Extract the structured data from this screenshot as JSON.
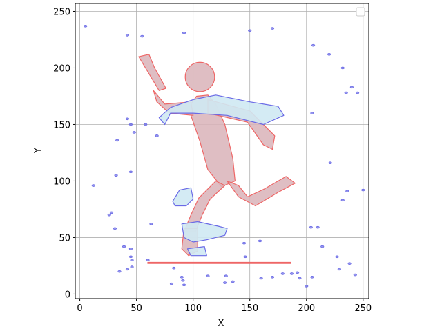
{
  "chart_data": {
    "type": "scatter",
    "title": "",
    "xlabel": "X",
    "ylabel": "Y",
    "xlim": [
      -4,
      255
    ],
    "ylim": [
      -4,
      257
    ],
    "xticks": [
      0,
      50,
      100,
      150,
      200,
      250
    ],
    "yticks": [
      0,
      50,
      100,
      150,
      200,
      250
    ],
    "x_tick_labels": [
      "0",
      "50",
      "100",
      "150",
      "200",
      "250"
    ],
    "y_tick_labels": [
      "0",
      "50",
      "100",
      "150",
      "200",
      "250"
    ],
    "grid": true,
    "legend": {
      "location": "top-right",
      "entries": []
    },
    "colors": {
      "outline_blue": "#6a6ae6",
      "fill_light_blue": "#cfe9f3",
      "mask_red": "#ee6666",
      "mask_fill": "#d9b3b8",
      "grid": "#b0b0b0"
    },
    "series": [
      {
        "kind": "polygon",
        "role": "pose-mask",
        "color": "#ee6666",
        "fill": "#d9b3b8",
        "parts": [
          {
            "part": "head",
            "shape": "circle",
            "cx": 106,
            "cy": 192,
            "r": 13
          },
          {
            "part": "torso",
            "points": [
              [
                103,
                175
              ],
              [
                113,
                176
              ],
              [
                120,
                168
              ],
              [
                128,
                150
              ],
              [
                135,
                120
              ],
              [
                137,
                100
              ],
              [
                125,
                95
              ],
              [
                113,
                110
              ],
              [
                106,
                135
              ],
              [
                98,
                158
              ],
              [
                98,
                168
              ]
            ]
          },
          {
            "part": "upper-arm-left",
            "points": [
              [
                98,
                170
              ],
              [
                75,
                168
              ],
              [
                65,
                180
              ],
              [
                68,
                170
              ],
              [
                79,
                160
              ],
              [
                100,
                158
              ]
            ]
          },
          {
            "part": "forearm-left",
            "points": [
              [
                70,
                180
              ],
              [
                58,
                200
              ],
              [
                52,
                210
              ],
              [
                61,
                212
              ],
              [
                66,
                200
              ],
              [
                76,
                182
              ]
            ]
          },
          {
            "part": "arm-right",
            "points": [
              [
                113,
                172
              ],
              [
                150,
                162
              ],
              [
                172,
                140
              ],
              [
                170,
                128
              ],
              [
                162,
                132
              ],
              [
                148,
                152
              ],
              [
                113,
                160
              ]
            ]
          },
          {
            "part": "thigh-left",
            "points": [
              [
                120,
                100
              ],
              [
                105,
                85
              ],
              [
                98,
                70
              ],
              [
                92,
                55
              ],
              [
                102,
                55
              ],
              [
                108,
                70
              ],
              [
                115,
                84
              ],
              [
                128,
                96
              ]
            ]
          },
          {
            "part": "shin-left",
            "points": [
              [
                92,
                58
              ],
              [
                90,
                40
              ],
              [
                96,
                34
              ],
              [
                104,
                38
              ],
              [
                104,
                58
              ]
            ]
          },
          {
            "part": "leg-right",
            "points": [
              [
                130,
                100
              ],
              [
                140,
                86
              ],
              [
                155,
                78
              ],
              [
                175,
                90
              ],
              [
                190,
                98
              ],
              [
                182,
                104
              ],
              [
                163,
                93
              ],
              [
                148,
                86
              ],
              [
                140,
                96
              ]
            ]
          },
          {
            "part": "skateboard",
            "points": [
              [
                60,
                27
              ],
              [
                186,
                27
              ],
              [
                186,
                28
              ],
              [
                60,
                28
              ]
            ]
          }
        ]
      },
      {
        "kind": "polygon",
        "role": "segmentation-regions",
        "color": "#6a6ae6",
        "fill": "#cfe9f3",
        "parts": [
          {
            "part": "shirt-region",
            "points": [
              [
                80,
                165
              ],
              [
                100,
                172
              ],
              [
                120,
                176
              ],
              [
                150,
                170
              ],
              [
                175,
                166
              ],
              [
                180,
                158
              ],
              [
                162,
                150
              ],
              [
                130,
                158
              ],
              [
                100,
                160
              ],
              [
                80,
                160
              ],
              [
                75,
                150
              ],
              [
                70,
                156
              ]
            ]
          },
          {
            "part": "board-region",
            "points": [
              [
                90,
                62
              ],
              [
                104,
                64
              ],
              [
                122,
                60
              ],
              [
                130,
                58
              ],
              [
                128,
                52
              ],
              [
                112,
                48
              ],
              [
                100,
                46
              ],
              [
                92,
                50
              ]
            ]
          },
          {
            "part": "shadow-region",
            "points": [
              [
                82,
                82
              ],
              [
                88,
                92
              ],
              [
                98,
                94
              ],
              [
                100,
                84
              ],
              [
                94,
                78
              ],
              [
                84,
                78
              ]
            ]
          },
          {
            "part": "foot-region",
            "points": [
              [
                95,
                40
              ],
              [
                110,
                42
              ],
              [
                112,
                34
              ],
              [
                98,
                34
              ]
            ]
          }
        ]
      },
      {
        "kind": "scatter",
        "role": "speckles",
        "color": "#6a6ae6",
        "points": [
          [
            5,
            237
          ],
          [
            42,
            229
          ],
          [
            55,
            228
          ],
          [
            92,
            231
          ],
          [
            150,
            233
          ],
          [
            170,
            235
          ],
          [
            220,
            212
          ],
          [
            206,
            220
          ],
          [
            235,
            178
          ],
          [
            240,
            183
          ],
          [
            245,
            178
          ],
          [
            232,
            200
          ],
          [
            42,
            155
          ],
          [
            45,
            150
          ],
          [
            48,
            143
          ],
          [
            33,
            136
          ],
          [
            32,
            105
          ],
          [
            45,
            108
          ],
          [
            58,
            150
          ],
          [
            68,
            140
          ],
          [
            205,
            160
          ],
          [
            221,
            116
          ],
          [
            236,
            91
          ],
          [
            232,
            83
          ],
          [
            250,
            92
          ],
          [
            214,
            42
          ],
          [
            227,
            33
          ],
          [
            238,
            27
          ],
          [
            243,
            17
          ],
          [
            229,
            22
          ],
          [
            204,
            59
          ],
          [
            210,
            59
          ],
          [
            45,
            33
          ],
          [
            46,
            30
          ],
          [
            46,
            24
          ],
          [
            35,
            20
          ],
          [
            42,
            22
          ],
          [
            45,
            40
          ],
          [
            39,
            42
          ],
          [
            83,
            23
          ],
          [
            92,
            8
          ],
          [
            135,
            11
          ],
          [
            113,
            16
          ],
          [
            129,
            16
          ],
          [
            170,
            15
          ],
          [
            179,
            18
          ],
          [
            187,
            18
          ],
          [
            192,
            19
          ],
          [
            194,
            14
          ],
          [
            205,
            15
          ],
          [
            90,
            15
          ],
          [
            91,
            12
          ],
          [
            81,
            9
          ],
          [
            128,
            10
          ],
          [
            160,
            14
          ],
          [
            63,
            62
          ],
          [
            60,
            30
          ],
          [
            145,
            45
          ],
          [
            159,
            47
          ],
          [
            146,
            33
          ],
          [
            200,
            7
          ],
          [
            12,
            96
          ],
          [
            26,
            70
          ],
          [
            28,
            72
          ],
          [
            31,
            58
          ]
        ]
      }
    ]
  }
}
